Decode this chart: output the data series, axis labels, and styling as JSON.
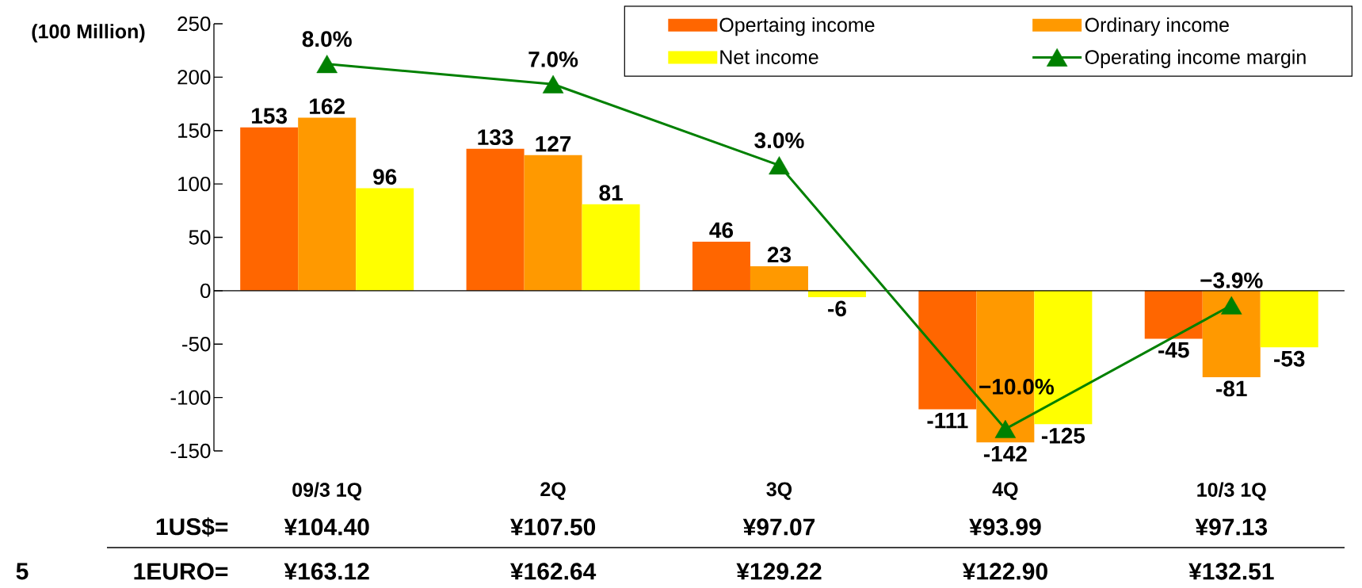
{
  "chart_data": {
    "type": "bar",
    "ylabel": "(100 Million)",
    "categories": [
      "09/3 1Q",
      "2Q",
      "3Q",
      "4Q",
      "10/3 1Q"
    ],
    "series": [
      {
        "name": "Opertaing income",
        "color": "#ff6600",
        "values": [
          153,
          133,
          46,
          -111,
          -45
        ]
      },
      {
        "name": "Ordinary income",
        "color": "#ff9900",
        "values": [
          162,
          127,
          23,
          -142,
          -81
        ]
      },
      {
        "name": "Net income",
        "color": "#ffff00",
        "values": [
          96,
          81,
          -6,
          -125,
          -53
        ]
      },
      {
        "name": "Operating income margin",
        "type": "line",
        "axis": "y2",
        "color": "#008000",
        "marker": "triangle",
        "line_style": "solid",
        "values": [
          8.0,
          7.0,
          3.0,
          -10.0,
          -3.9
        ],
        "value_labels": [
          "8.0%",
          "7.0%",
          "3.0%",
          "−10.0%",
          "−3.9%"
        ]
      }
    ],
    "ylim": [
      -150,
      250
    ],
    "yticks": [
      -150,
      -100,
      -50,
      0,
      50,
      100,
      150,
      200,
      250
    ],
    "data_labels": true,
    "legend": "top right",
    "annotations": [
      "1US$=",
      "¥104.40",
      "¥107.50",
      "¥97.07",
      "¥93.99",
      "¥97.13",
      "1EURO=",
      "¥163.12",
      "¥162.64",
      "¥129.22",
      "¥122.90",
      "¥132.51",
      "5"
    ]
  }
}
